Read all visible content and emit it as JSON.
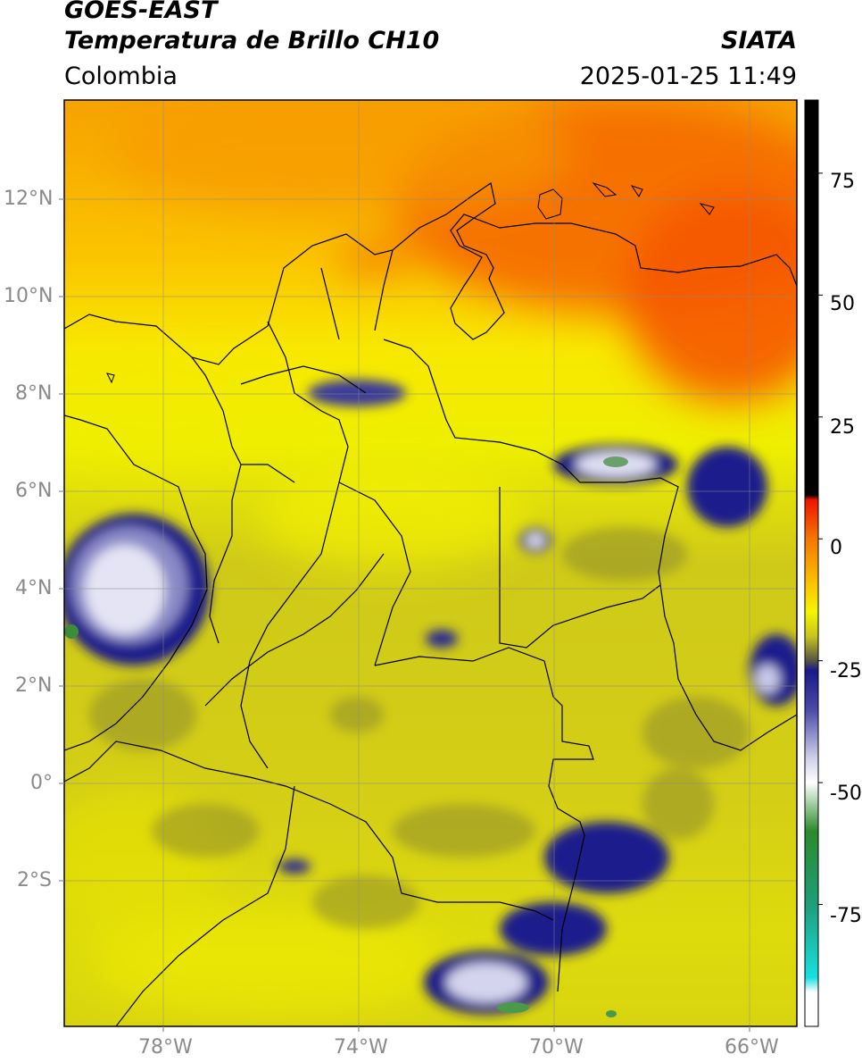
{
  "header": {
    "satellite": "GOES-EAST",
    "product": "Temperatura de Brillo CH10",
    "agency": "SIATA",
    "region": "Colombia",
    "timestamp": "2025-01-25 11:49"
  },
  "axes": {
    "lat_labels": [
      "12°N",
      "10°N",
      "8°N",
      "6°N",
      "4°N",
      "2°N",
      "0°",
      "2°S"
    ],
    "lon_labels": [
      "78°W",
      "74°W",
      "70°W",
      "66°W"
    ]
  },
  "colorbar": {
    "ticks": [
      "75",
      "50",
      "25",
      "0",
      "-25",
      "-50",
      "-75"
    ],
    "min": -100,
    "max": 90,
    "stops": [
      {
        "v": 90,
        "c": "#000000"
      },
      {
        "v": 9,
        "c": "#000000"
      },
      {
        "v": 8,
        "c": "#ee1500"
      },
      {
        "v": 0,
        "c": "#f57700"
      },
      {
        "v": -10,
        "c": "#fbca00"
      },
      {
        "v": -15,
        "c": "#f5f500"
      },
      {
        "v": -20,
        "c": "#c8c41e"
      },
      {
        "v": -25,
        "c": "#555544"
      },
      {
        "v": -27,
        "c": "#1a1a8a"
      },
      {
        "v": -35,
        "c": "#4a4aa8"
      },
      {
        "v": -45,
        "c": "#d0d0ea"
      },
      {
        "v": -50,
        "c": "#ffffff"
      },
      {
        "v": -60,
        "c": "#2b8a2b"
      },
      {
        "v": -75,
        "c": "#1f9e7a"
      },
      {
        "v": -90,
        "c": "#18e0e0"
      },
      {
        "v": -93,
        "c": "#ffffff"
      },
      {
        "v": -100,
        "c": "#ffffff"
      }
    ]
  }
}
